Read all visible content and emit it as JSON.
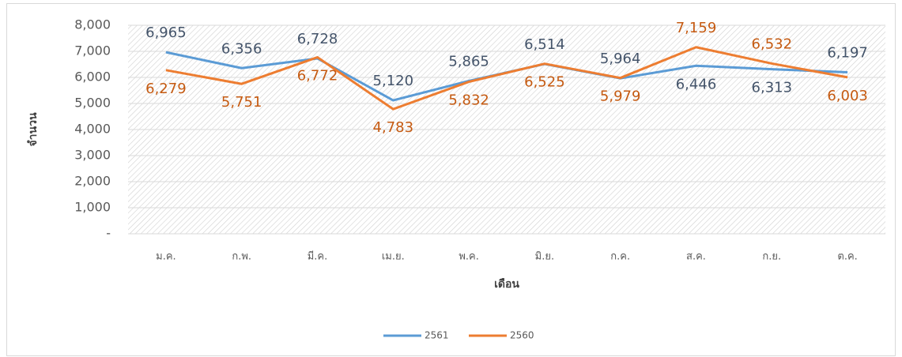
{
  "chart_data": {
    "type": "line",
    "xlabel": "เดือน",
    "ylabel": "จำนวน",
    "categories": [
      "ม.ค.",
      "ก.พ.",
      "มี.ค.",
      "เม.ย.",
      "พ.ค.",
      "มิ.ย.",
      "ก.ค.",
      "ส.ค.",
      "ก.ย.",
      "ต.ค."
    ],
    "series": [
      {
        "name": "2561",
        "color": "#5b9bd5",
        "values": [
          6965,
          6356,
          6728,
          5120,
          5865,
          6514,
          5964,
          6446,
          6313,
          6197
        ],
        "value_labels": [
          "6,965",
          "6,356",
          "6,728",
          "5,120",
          "5,865",
          "6,514",
          "5,964",
          "6,446",
          "6,313",
          "6,197"
        ]
      },
      {
        "name": "2560",
        "color": "#ed7d31",
        "values": [
          6279,
          5751,
          6772,
          4783,
          5832,
          6525,
          5979,
          7159,
          6532,
          6003
        ],
        "value_labels": [
          "6,279",
          "5,751",
          "6,772",
          "4,783",
          "5,832",
          "6,525",
          "5,979",
          "7,159",
          "6,532",
          "6,003"
        ]
      }
    ],
    "ylim": [
      0,
      8000
    ],
    "yticks": [
      {
        "value": 0,
        "label": "-"
      },
      {
        "value": 1000,
        "label": "1,000"
      },
      {
        "value": 2000,
        "label": "2,000"
      },
      {
        "value": 3000,
        "label": "3,000"
      },
      {
        "value": 4000,
        "label": "4,000"
      },
      {
        "value": 5000,
        "label": "5,000"
      },
      {
        "value": 6000,
        "label": "6,000"
      },
      {
        "value": 7000,
        "label": "7,000"
      },
      {
        "value": 8000,
        "label": "8,000"
      }
    ],
    "grid": true,
    "legend": "bottom"
  }
}
